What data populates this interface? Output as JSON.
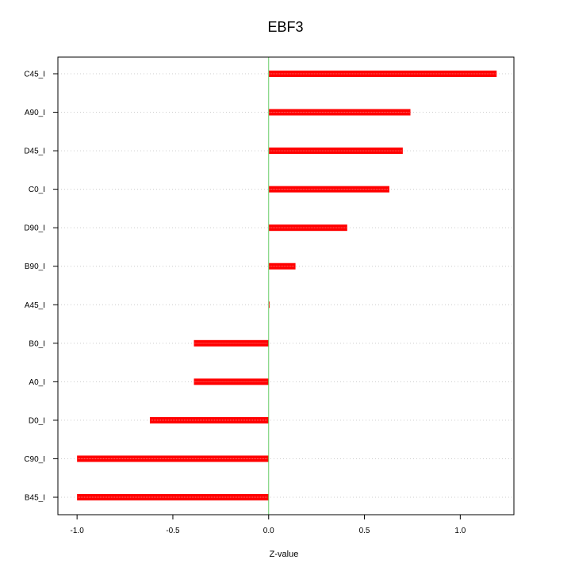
{
  "chart_data": {
    "type": "bar",
    "orientation": "horizontal",
    "title": "EBF3",
    "xlabel": "Z-value",
    "ylabel": "",
    "xlim": [
      -1.1,
      1.28
    ],
    "x_ticks": [
      -1.0,
      -0.5,
      0.0,
      0.5,
      1.0
    ],
    "x_tick_labels": [
      "-1.0",
      "-0.5",
      "0.0",
      "0.5",
      "1.0"
    ],
    "grid": "horizontal dotted",
    "zero_line": true,
    "categories": [
      "C45_I",
      "A90_I",
      "D45_I",
      "C0_I",
      "D90_I",
      "B90_I",
      "A45_I",
      "B0_I",
      "A0_I",
      "D0_I",
      "C90_I",
      "B45_I"
    ],
    "values": [
      1.19,
      0.74,
      0.7,
      0.63,
      0.41,
      0.14,
      0.005,
      -0.39,
      -0.39,
      -0.62,
      -1.0,
      -1.0
    ],
    "colors": {
      "bar": "#ff0000",
      "bar_highlight": "#ffcccc",
      "zero_line": "#66cc66",
      "grid": "#cccccc",
      "axis": "#000000"
    }
  }
}
